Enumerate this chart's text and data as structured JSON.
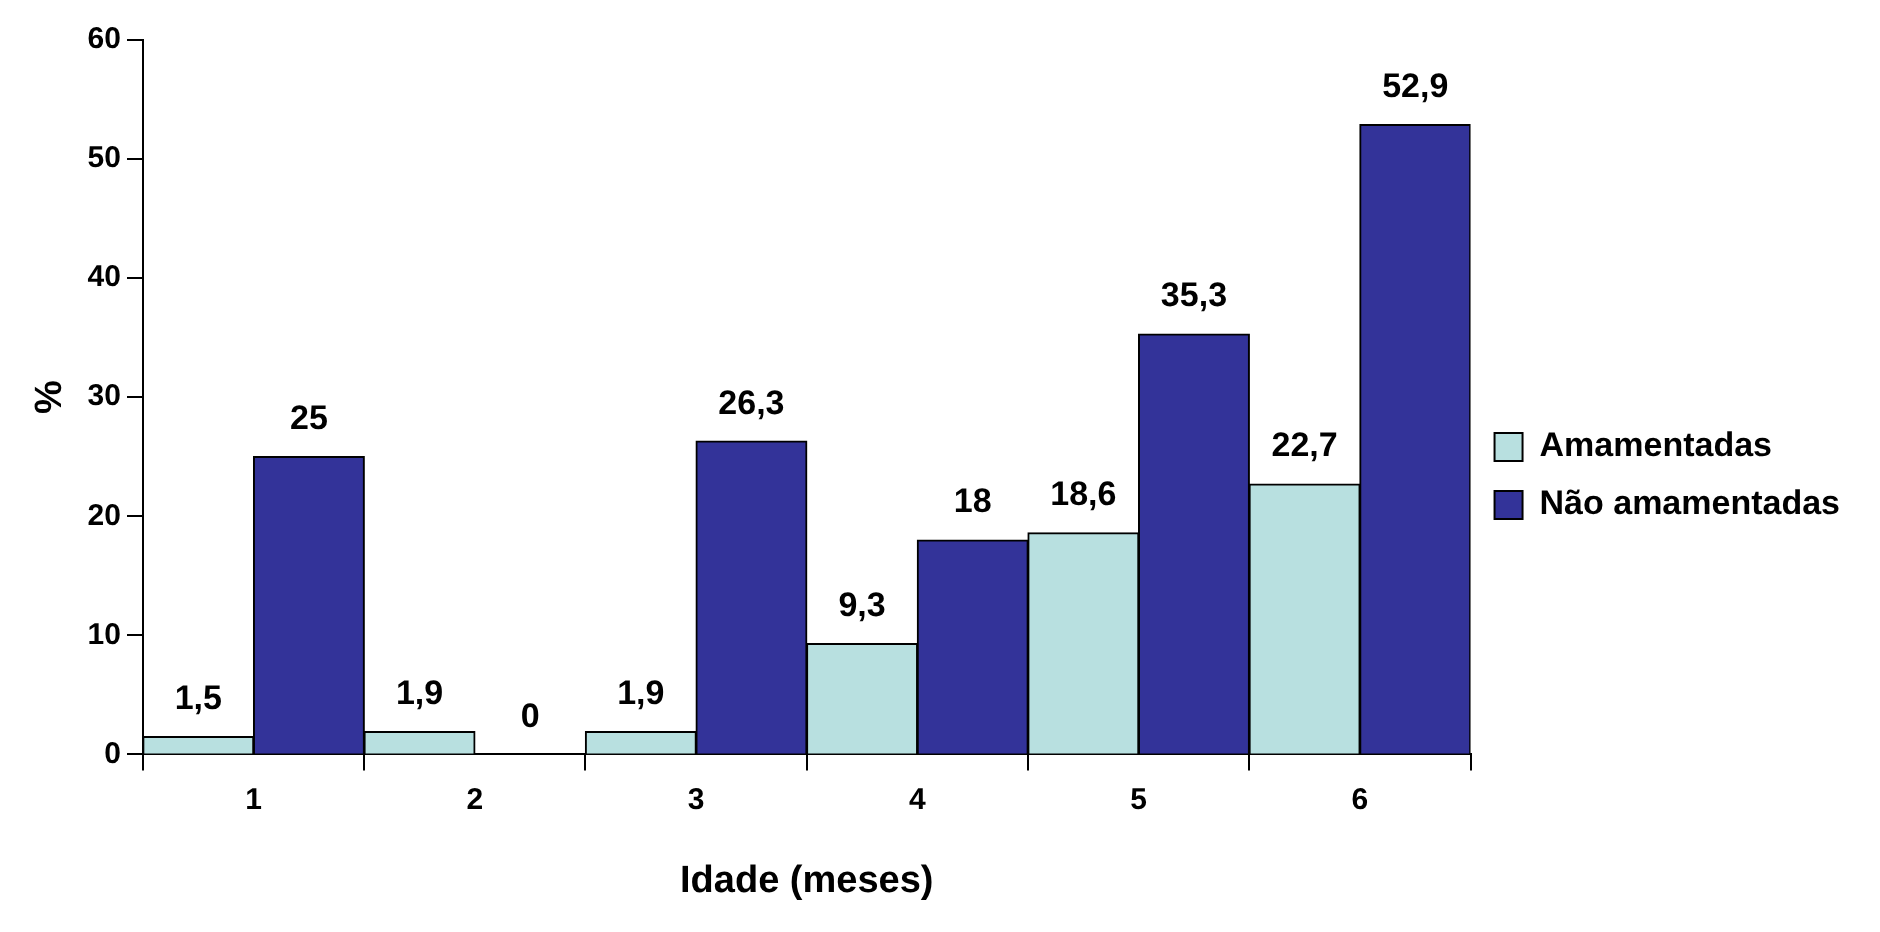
{
  "chart_data": {
    "type": "bar",
    "xlabel": "Idade (meses)",
    "ylabel": "%",
    "categories": [
      "1",
      "2",
      "3",
      "4",
      "5",
      "6"
    ],
    "series": [
      {
        "name": "Amamentadas",
        "color": "#b8e0e0",
        "values": [
          1.5,
          1.9,
          1.9,
          9.3,
          18.6,
          22.7
        ],
        "value_labels": [
          "1,5",
          "1,9",
          "1,9",
          "9,3",
          "18,6",
          "22,7"
        ]
      },
      {
        "name": "Não amamentadas",
        "color": "#333399",
        "values": [
          25,
          0,
          26.3,
          18,
          35.3,
          52.9
        ],
        "value_labels": [
          "25",
          "0",
          "26,3",
          "18",
          "35,3",
          "52,9"
        ]
      }
    ],
    "ylim": [
      0,
      60
    ],
    "yticks": [
      0,
      10,
      20,
      30,
      40,
      50,
      60
    ],
    "grid": false,
    "legend": "right"
  }
}
